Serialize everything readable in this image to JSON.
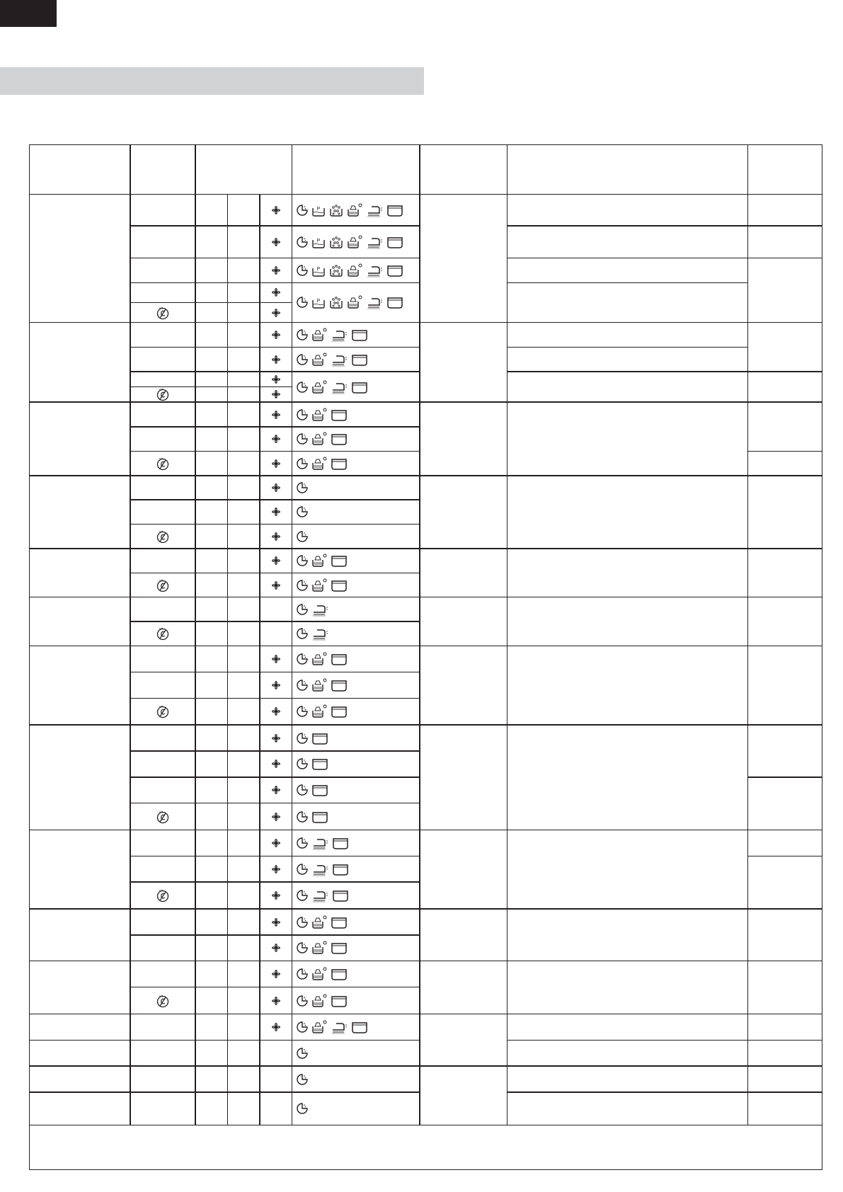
{
  "header_colors": {
    "black_tab": "#231f20",
    "section_bar": "#d1d2d4",
    "rule": "#231f20"
  },
  "icons": {
    "timer": "timer-icon",
    "wash_p": "wash-basin-p-icon",
    "wash_balls": "wash-basin-balls-icon",
    "wash_steam": "wash-basin-steam-icon",
    "iron": "iron-icon",
    "tub": "tub-icon",
    "spin": "spin-flower-icon",
    "no_bleach": "no-bleach-icon"
  },
  "care_cells": [
    [
      "timer",
      "wash_p",
      "wash_balls",
      "wash_steam",
      "iron",
      "tub"
    ],
    [
      "timer",
      "wash_p",
      "wash_balls",
      "wash_steam",
      "iron",
      "tub"
    ],
    [
      "timer",
      "wash_p",
      "wash_balls",
      "wash_steam",
      "iron",
      "tub"
    ],
    [
      "timer",
      "wash_p",
      "wash_balls",
      "wash_steam",
      "iron",
      "tub"
    ],
    [
      "timer",
      "wash_steam",
      "iron",
      "tub"
    ],
    [
      "timer",
      "wash_steam",
      "iron",
      "tub"
    ],
    [
      "timer",
      "wash_steam",
      "iron",
      "tub"
    ],
    [
      "timer",
      "wash_steam",
      "tub"
    ],
    [
      "timer",
      "wash_steam",
      "tub"
    ],
    [
      "timer",
      "wash_steam",
      "tub"
    ],
    [
      "timer"
    ],
    [
      "timer"
    ],
    [
      "timer"
    ],
    [
      "timer",
      "wash_steam",
      "tub"
    ],
    [
      "timer",
      "wash_steam",
      "tub"
    ],
    [
      "timer",
      "iron"
    ],
    [
      "timer",
      "iron"
    ],
    [
      "timer",
      "wash_steam",
      "tub"
    ],
    [
      "timer",
      "wash_steam",
      "tub"
    ],
    [
      "timer",
      "wash_steam",
      "tub"
    ],
    [
      "timer",
      "tub"
    ],
    [
      "timer",
      "tub"
    ],
    [
      "timer",
      "tub"
    ],
    [
      "timer",
      "tub"
    ],
    [
      "timer",
      "iron",
      "tub"
    ],
    [
      "timer",
      "iron",
      "tub"
    ],
    [
      "timer",
      "iron",
      "tub"
    ],
    [
      "timer",
      "wash_steam",
      "tub"
    ],
    [
      "timer",
      "wash_steam",
      "tub"
    ],
    [
      "timer",
      "wash_steam",
      "tub"
    ],
    [
      "timer",
      "wash_steam",
      "tub"
    ],
    [
      "timer",
      "wash_steam",
      "iron",
      "tub"
    ],
    [
      "timer"
    ],
    [
      "timer"
    ],
    [
      "timer"
    ]
  ],
  "spin_rows": [
    0,
    1,
    2,
    3,
    4,
    5,
    6,
    7,
    8,
    9,
    10,
    11,
    12,
    13,
    14,
    15,
    16,
    19,
    20,
    21,
    22,
    23,
    24,
    25,
    26,
    27,
    28,
    29,
    30,
    31,
    32,
    33
  ],
  "no_bleach_rows": [
    4,
    8,
    11,
    14,
    16,
    18,
    21,
    25,
    28,
    32
  ]
}
